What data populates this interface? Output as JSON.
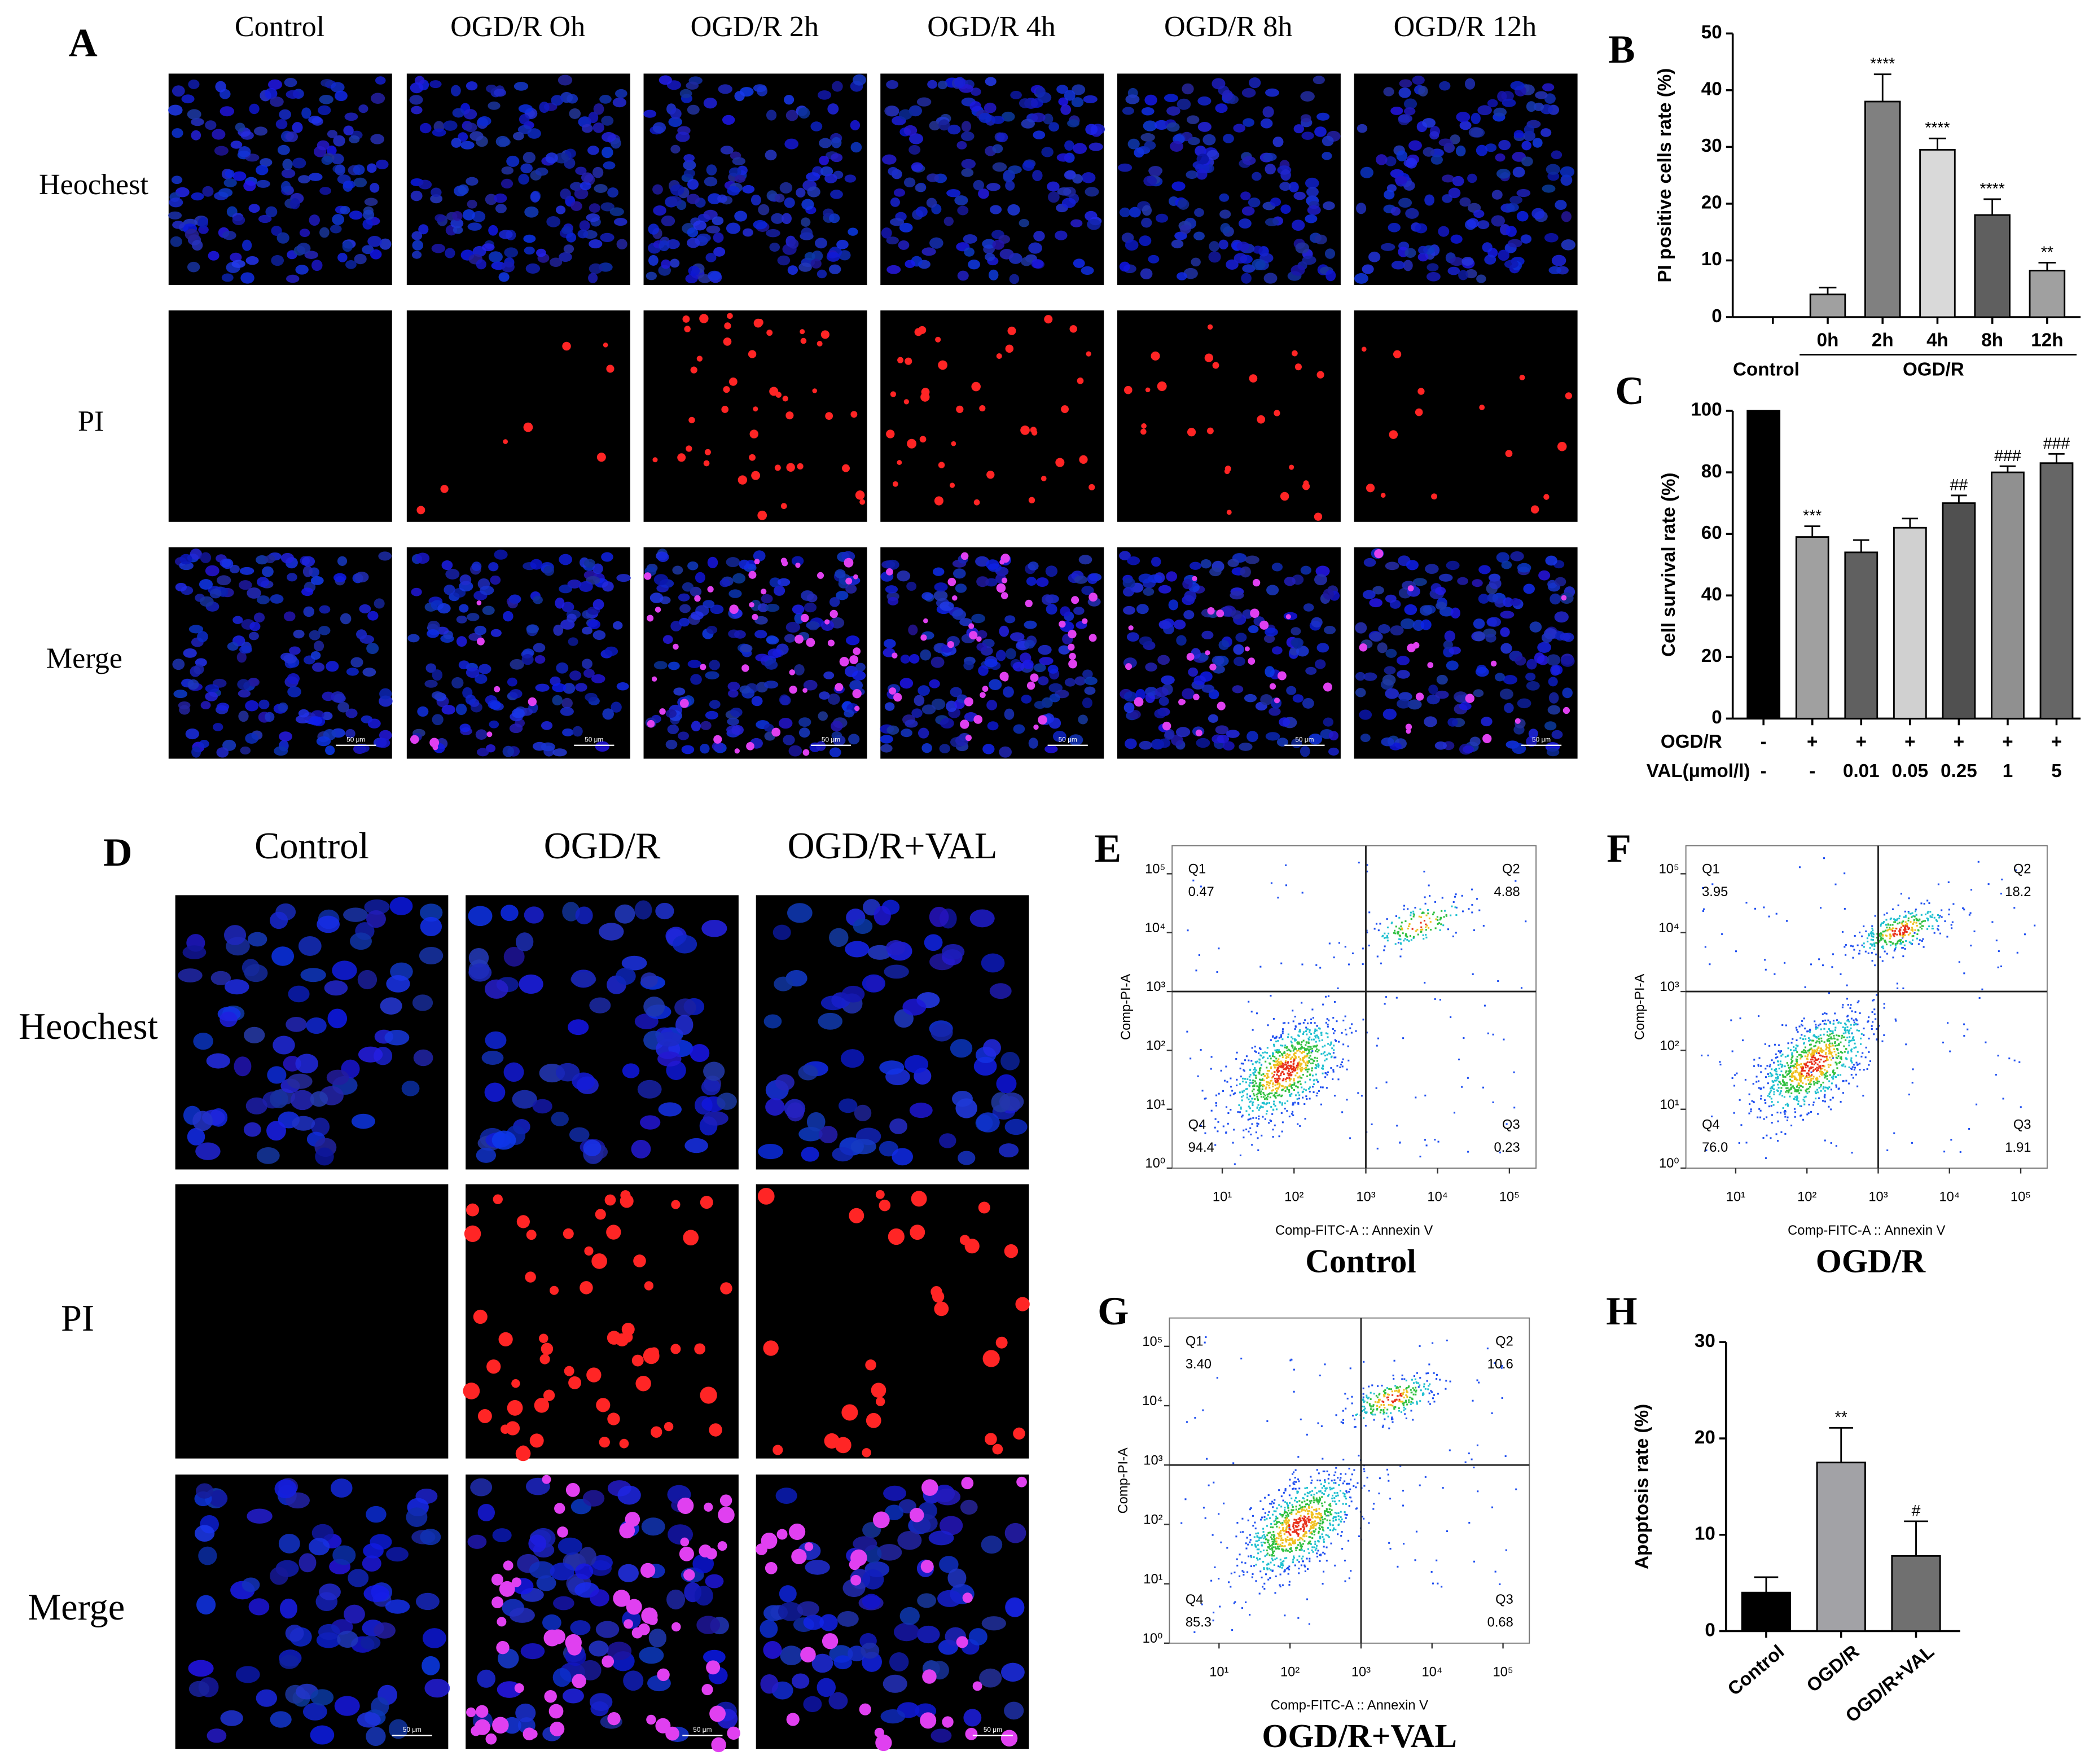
{
  "figure": {
    "panel_a": {
      "letter": "A",
      "columns": [
        "Control",
        "OGD/R Oh",
        "OGD/R 2h",
        "OGD/R 4h",
        "OGD/R 8h",
        "OGD/R 12h"
      ],
      "rows": [
        "Heochest",
        "PI",
        "Merge"
      ],
      "scale_bar": "50 μm"
    },
    "panel_d": {
      "letter": "D",
      "columns": [
        "Control",
        "OGD/R",
        "OGD/R+VAL"
      ],
      "rows": [
        "Heochest",
        "PI",
        "Merge"
      ],
      "scale_bar": "50 μm"
    }
  },
  "chart_data": [
    {
      "type": "bar",
      "letter": "B",
      "ylabel": "PI positive cells rate (%)",
      "categories": [
        null,
        "0h",
        "2h",
        "4h",
        "8h",
        "12h"
      ],
      "group_labels": [
        "Control",
        "OGD/R"
      ],
      "values": [
        null,
        4,
        38,
        29.5,
        18,
        8.2
      ],
      "errors": [
        null,
        1.2,
        4.8,
        2,
        2.8,
        1.4
      ],
      "significance": [
        null,
        null,
        "****",
        "****",
        "****",
        "**"
      ],
      "colors": [
        "#a0a0a0",
        "#a0a0a0",
        "#808080",
        "#d9d9d9",
        "#5f5f5f",
        "#a0a0a0"
      ],
      "ylim": [
        0,
        50
      ],
      "yticks": [
        0,
        10,
        20,
        30,
        40,
        50
      ]
    },
    {
      "type": "bar",
      "letter": "C",
      "ylabel": "Cell survival rate (%)",
      "condition_rows": [
        {
          "name": "OGD/R",
          "values": [
            "-",
            "+",
            "+",
            "+",
            "+",
            "+",
            "+"
          ]
        },
        {
          "name": "VAL(μmol/l)",
          "values": [
            "-",
            "-",
            "0.01",
            "0.05",
            "0.25",
            "1",
            "5"
          ]
        }
      ],
      "values": [
        100,
        59,
        54,
        62,
        70,
        80,
        83
      ],
      "errors": [
        null,
        3.5,
        4,
        3,
        2.5,
        2,
        3
      ],
      "significance": [
        null,
        "***",
        null,
        null,
        "##",
        "###",
        "###"
      ],
      "colors": [
        "#000000",
        "#a0a0a0",
        "#606060",
        "#d0d0d0",
        "#505050",
        "#909090",
        "#666666"
      ],
      "ylim": [
        0,
        100
      ],
      "yticks": [
        0,
        20,
        40,
        60,
        80,
        100
      ]
    },
    {
      "type": "bar",
      "letter": "H",
      "ylabel": "Apoptosis rate (%)",
      "categories": [
        "Control",
        "OGD/R",
        "OGD/R+VAL"
      ],
      "values": [
        4,
        17.5,
        7.8
      ],
      "errors": [
        1.6,
        3.6,
        3.6
      ],
      "significance": [
        null,
        "**",
        "#"
      ],
      "colors": [
        "#000000",
        "#a2a2a6",
        "#707070"
      ],
      "ylim": [
        0,
        30
      ],
      "yticks": [
        0,
        10,
        20,
        30
      ]
    }
  ],
  "flow_plots": [
    {
      "letter": "E",
      "caption": "Control",
      "xlabel": "Comp-FITC-A :: Annexin V",
      "ylabel": "Comp-PI-A",
      "log": true,
      "xlim": [
        2,
        235000
      ],
      "ylim": [
        1,
        300000
      ],
      "gate": [
        1000,
        1000
      ],
      "xticks": [
        {
          "value": 10,
          "label": "10¹"
        },
        {
          "value": 100,
          "label": "10²"
        },
        {
          "value": 1000,
          "label": "10³"
        },
        {
          "value": 10000,
          "label": "10⁴"
        },
        {
          "value": 100000,
          "label": "10⁵"
        }
      ],
      "yticks": [
        {
          "value": 1,
          "label": "10⁰"
        },
        {
          "value": 10,
          "label": "10¹"
        },
        {
          "value": 100,
          "label": "10²"
        },
        {
          "value": 1000,
          "label": "10³"
        },
        {
          "value": 10000,
          "label": "10⁴"
        },
        {
          "value": 100000,
          "label": "10⁵"
        }
      ],
      "quadrant_names": [
        "Q1",
        "Q2",
        "Q3",
        "Q4"
      ],
      "quadrant_values": [
        0.47,
        4.88,
        0.23,
        94.4
      ]
    },
    {
      "letter": "F",
      "caption": "OGD/R",
      "xlabel": "Comp-FITC-A :: Annexin V",
      "ylabel": "Comp-PI-A",
      "log": true,
      "xlim": [
        2,
        235000
      ],
      "ylim": [
        1,
        300000
      ],
      "gate": [
        1000,
        1000
      ],
      "xticks": [
        {
          "value": 10,
          "label": "10¹"
        },
        {
          "value": 100,
          "label": "10²"
        },
        {
          "value": 1000,
          "label": "10³"
        },
        {
          "value": 10000,
          "label": "10⁴"
        },
        {
          "value": 100000,
          "label": "10⁵"
        }
      ],
      "yticks": [
        {
          "value": 1,
          "label": "10⁰"
        },
        {
          "value": 10,
          "label": "10¹"
        },
        {
          "value": 100,
          "label": "10²"
        },
        {
          "value": 1000,
          "label": "10³"
        },
        {
          "value": 10000,
          "label": "10⁴"
        },
        {
          "value": 100000,
          "label": "10⁵"
        }
      ],
      "quadrant_names": [
        "Q1",
        "Q2",
        "Q3",
        "Q4"
      ],
      "quadrant_values": [
        3.95,
        18.2,
        1.91,
        76
      ],
      "value_labels": [
        "3.95",
        "18.2",
        "1.91",
        "76.0"
      ]
    },
    {
      "letter": "G",
      "caption": "OGD/R+VAL",
      "xlabel": "Comp-FITC-A :: Annexin V",
      "ylabel": "Comp-PI-A",
      "log": true,
      "xlim": [
        2,
        235000
      ],
      "ylim": [
        1,
        300000
      ],
      "gate": [
        1000,
        1000
      ],
      "xticks": [
        {
          "value": 10,
          "label": "10¹"
        },
        {
          "value": 100,
          "label": "10²"
        },
        {
          "value": 1000,
          "label": "10³"
        },
        {
          "value": 10000,
          "label": "10⁴"
        },
        {
          "value": 100000,
          "label": "10⁵"
        }
      ],
      "yticks": [
        {
          "value": 1,
          "label": "10⁰"
        },
        {
          "value": 10,
          "label": "10¹"
        },
        {
          "value": 100,
          "label": "10²"
        },
        {
          "value": 1000,
          "label": "10³"
        },
        {
          "value": 10000,
          "label": "10⁴"
        },
        {
          "value": 100000,
          "label": "10⁵"
        }
      ],
      "quadrant_names": [
        "Q1",
        "Q2",
        "Q3",
        "Q4"
      ],
      "quadrant_values": [
        3.4,
        10.6,
        0.68,
        85.3
      ],
      "value_labels": [
        "3.40",
        "10.6",
        "0.68",
        "85.3"
      ]
    }
  ]
}
